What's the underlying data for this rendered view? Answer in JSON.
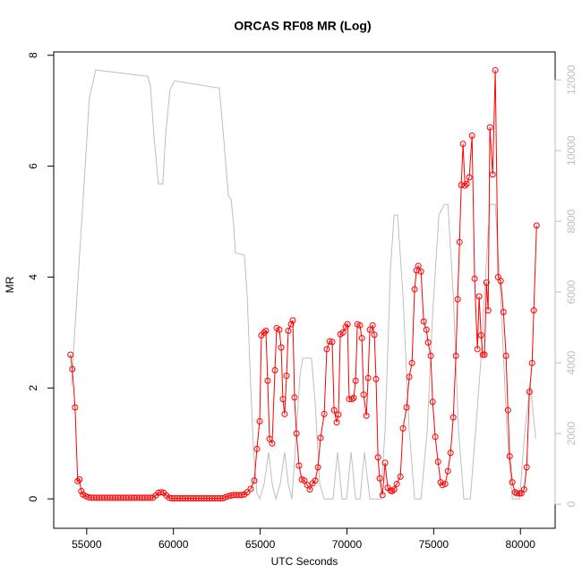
{
  "chart_data": {
    "type": "line",
    "title": "ORCAS RF08 MR (Log)",
    "x_label": "UTC Seconds",
    "y_label": "MR",
    "xlim": [
      53100,
      82000
    ],
    "xticks": [
      55000,
      60000,
      65000,
      70000,
      75000,
      80000
    ],
    "ylim": [
      -0.53,
      8.06
    ],
    "yticks": [
      0,
      2,
      4,
      6,
      8
    ],
    "y2lim": [
      -680,
      12790
    ],
    "y2ticks": [
      0,
      2000,
      4000,
      6000,
      8000,
      10000,
      12000
    ],
    "y2_color": "#bebebe",
    "series": [
      {
        "color": "#bebebe",
        "axis": "y2",
        "marker": "none",
        "x": [
          54120,
          54540,
          54900,
          55150,
          55520,
          58510,
          58670,
          58870,
          59130,
          59390,
          59550,
          59800,
          60060,
          62640,
          62900,
          63160,
          63320,
          63470,
          63570,
          64090,
          64250,
          64450,
          64610,
          64810,
          64970,
          65230,
          65490,
          65690,
          65900,
          66160,
          66410,
          66620,
          66830,
          67030,
          67290,
          67450,
          67960,
          68170,
          68430,
          68690,
          69200,
          69460,
          69720,
          69980,
          70240,
          70500,
          70750,
          71010,
          71320,
          71940,
          72200,
          72510,
          72720,
          72920,
          73230,
          73590,
          73900,
          74270,
          74630,
          74940,
          75300,
          75610,
          75820,
          76130,
          76430,
          76740,
          77110,
          77420,
          77730,
          77930,
          78240,
          78550,
          78860,
          79220,
          79530,
          79950,
          80260,
          80570,
          80880
        ],
        "values": [
          3370,
          6660,
          9440,
          11470,
          12280,
          12100,
          11850,
          10460,
          9060,
          9060,
          10460,
          11720,
          11970,
          11770,
          10330,
          8730,
          8630,
          7920,
          7110,
          7040,
          5900,
          3370,
          1590,
          330,
          150,
          580,
          1470,
          580,
          150,
          580,
          1470,
          580,
          150,
          1590,
          3620,
          4130,
          4130,
          2860,
          580,
          150,
          150,
          1470,
          150,
          150,
          1470,
          150,
          150,
          1470,
          150,
          150,
          2100,
          6660,
          8180,
          8180,
          5900,
          2100,
          150,
          150,
          2100,
          5390,
          8180,
          8480,
          8480,
          5900,
          2100,
          150,
          150,
          2100,
          4130,
          6000,
          8480,
          8480,
          5900,
          2100,
          150,
          150,
          2100,
          3400,
          1850
        ]
      },
      {
        "color": "#ff0000",
        "axis": "y",
        "marker": "circle",
        "x": [
          54070,
          54170,
          54330,
          54480,
          54590,
          54690,
          54790,
          54945,
          55100,
          55255,
          55410,
          55565,
          55720,
          55875,
          56030,
          56185,
          56340,
          56495,
          56650,
          56805,
          56960,
          57115,
          57270,
          57425,
          57580,
          57735,
          57890,
          58045,
          58200,
          58355,
          58510,
          58665,
          58820,
          58975,
          59130,
          59285,
          59440,
          59595,
          59750,
          59905,
          60060,
          60215,
          60370,
          60525,
          60680,
          60835,
          60990,
          61145,
          61300,
          61455,
          61610,
          61765,
          61920,
          62075,
          62230,
          62385,
          62540,
          62695,
          62850,
          63005,
          63160,
          63315,
          63470,
          63625,
          63780,
          63935,
          64090,
          64245,
          64450,
          64660,
          64810,
          64970,
          65070,
          65230,
          65330,
          65430,
          65540,
          65690,
          65850,
          65950,
          66100,
          66210,
          66310,
          66410,
          66520,
          66620,
          66780,
          66880,
          66980,
          67090,
          67240,
          67400,
          67550,
          67710,
          67860,
          68020,
          68170,
          68330,
          68480,
          68690,
          68840,
          69000,
          69150,
          69260,
          69410,
          69510,
          69620,
          69770,
          69930,
          70030,
          70130,
          70290,
          70390,
          70500,
          70600,
          70750,
          70860,
          70960,
          71120,
          71220,
          71320,
          71480,
          71580,
          71680,
          71790,
          71890,
          72050,
          72200,
          72350,
          72510,
          72610,
          72720,
          72870,
          73080,
          73230,
          73440,
          73590,
          73750,
          73900,
          74010,
          74110,
          74270,
          74420,
          74580,
          74680,
          74830,
          74940,
          75090,
          75250,
          75400,
          75510,
          75660,
          75820,
          75970,
          76130,
          76280,
          76380,
          76490,
          76590,
          76690,
          76800,
          76900,
          77050,
          77210,
          77360,
          77520,
          77620,
          77730,
          77830,
          77930,
          78040,
          78140,
          78240,
          78400,
          78550,
          78710,
          78860,
          79020,
          79170,
          79280,
          79380,
          79530,
          79690,
          79790,
          79950,
          80050,
          80210,
          80360,
          80520,
          80670,
          80770,
          80930
        ],
        "values": [
          2.6,
          2.34,
          1.65,
          0.32,
          0.35,
          0.14,
          0.08,
          0.05,
          0.03,
          0.02,
          0.02,
          0.02,
          0.02,
          0.02,
          0.02,
          0.02,
          0.02,
          0.02,
          0.02,
          0.02,
          0.02,
          0.02,
          0.02,
          0.02,
          0.02,
          0.02,
          0.02,
          0.02,
          0.02,
          0.02,
          0.02,
          0.02,
          0.02,
          0.06,
          0.11,
          0.12,
          0.11,
          0.06,
          0.02,
          0.01,
          0.01,
          0.01,
          0.01,
          0.01,
          0.01,
          0.01,
          0.01,
          0.01,
          0.01,
          0.01,
          0.01,
          0.01,
          0.01,
          0.01,
          0.01,
          0.01,
          0.01,
          0.01,
          0.01,
          0.03,
          0.05,
          0.06,
          0.07,
          0.07,
          0.07,
          0.07,
          0.08,
          0.12,
          0.18,
          0.33,
          0.9,
          1.4,
          2.95,
          3.0,
          3.03,
          2.13,
          1.08,
          1.0,
          2.32,
          3.08,
          3.05,
          2.73,
          1.8,
          1.53,
          2.22,
          3.03,
          3.15,
          3.22,
          1.83,
          1.18,
          0.6,
          0.35,
          0.33,
          0.25,
          0.17,
          0.28,
          0.33,
          0.57,
          1.1,
          1.53,
          2.7,
          2.84,
          2.83,
          1.6,
          1.38,
          1.52,
          2.97,
          3.0,
          3.1,
          3.15,
          1.8,
          1.8,
          1.82,
          2.13,
          3.15,
          3.13,
          2.9,
          1.88,
          1.5,
          2.18,
          3.05,
          3.13,
          2.96,
          2.16,
          0.75,
          0.37,
          0.07,
          0.65,
          0.2,
          0.15,
          0.14,
          0.17,
          0.27,
          0.4,
          1.27,
          1.65,
          2.2,
          2.45,
          3.78,
          4.12,
          4.2,
          4.1,
          3.2,
          3.05,
          2.82,
          2.58,
          1.75,
          1.12,
          0.67,
          0.3,
          0.25,
          0.27,
          0.5,
          0.83,
          1.47,
          2.58,
          3.6,
          4.63,
          5.66,
          6.4,
          5.65,
          5.68,
          5.8,
          6.55,
          3.97,
          2.7,
          3.65,
          2.95,
          2.6,
          2.6,
          3.9,
          3.4,
          6.7,
          5.85,
          7.73,
          4.0,
          3.93,
          3.37,
          2.58,
          1.6,
          0.77,
          0.3,
          0.12,
          0.1,
          0.1,
          0.1,
          0.17,
          0.57,
          1.93,
          2.45,
          3.4,
          4.93
        ]
      }
    ]
  }
}
